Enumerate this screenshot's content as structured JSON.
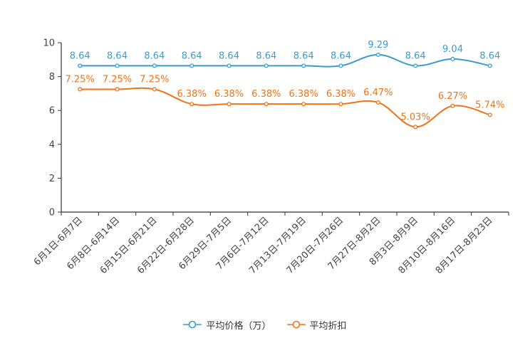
{
  "chart_data": {
    "type": "line",
    "title": "",
    "xlabel": "",
    "ylabel": "",
    "ylim": [
      0,
      10
    ],
    "yticks": [
      0,
      2,
      4,
      6,
      8,
      10
    ],
    "grid": false,
    "legend_position": "bottom-center",
    "categories": [
      "6月1日-6月7日",
      "6月8日-6月14日",
      "6月15日-6月21日",
      "6月22日-6月28日",
      "6月29日-7月5日",
      "7月6日-7月12日",
      "7月13日-7月19日",
      "7月20日-7月26日",
      "7月27日-8月2日",
      "8月3日-8月9日",
      "8月10日-8月16日",
      "8月17日-8月23日"
    ],
    "series": [
      {
        "name": "平均价格（万）",
        "color": "#3a9bd0",
        "values": [
          8.64,
          8.64,
          8.64,
          8.64,
          8.64,
          8.64,
          8.64,
          8.64,
          9.29,
          8.64,
          9.04,
          8.64
        ],
        "labels": [
          "8.64",
          "8.64",
          "8.64",
          "8.64",
          "8.64",
          "8.64",
          "8.64",
          "8.64",
          "9.29",
          "8.64",
          "9.04",
          "8.64"
        ]
      },
      {
        "name": "平均折扣",
        "color": "#f07318",
        "values": [
          7.25,
          7.25,
          7.25,
          6.38,
          6.38,
          6.38,
          6.38,
          6.38,
          6.47,
          5.03,
          6.27,
          5.74
        ],
        "labels": [
          "7.25%",
          "7.25%",
          "7.25%",
          "6.38%",
          "6.38%",
          "6.38%",
          "6.38%",
          "6.38%",
          "6.47%",
          "5.03%",
          "6.27%",
          "5.74%"
        ]
      }
    ]
  }
}
